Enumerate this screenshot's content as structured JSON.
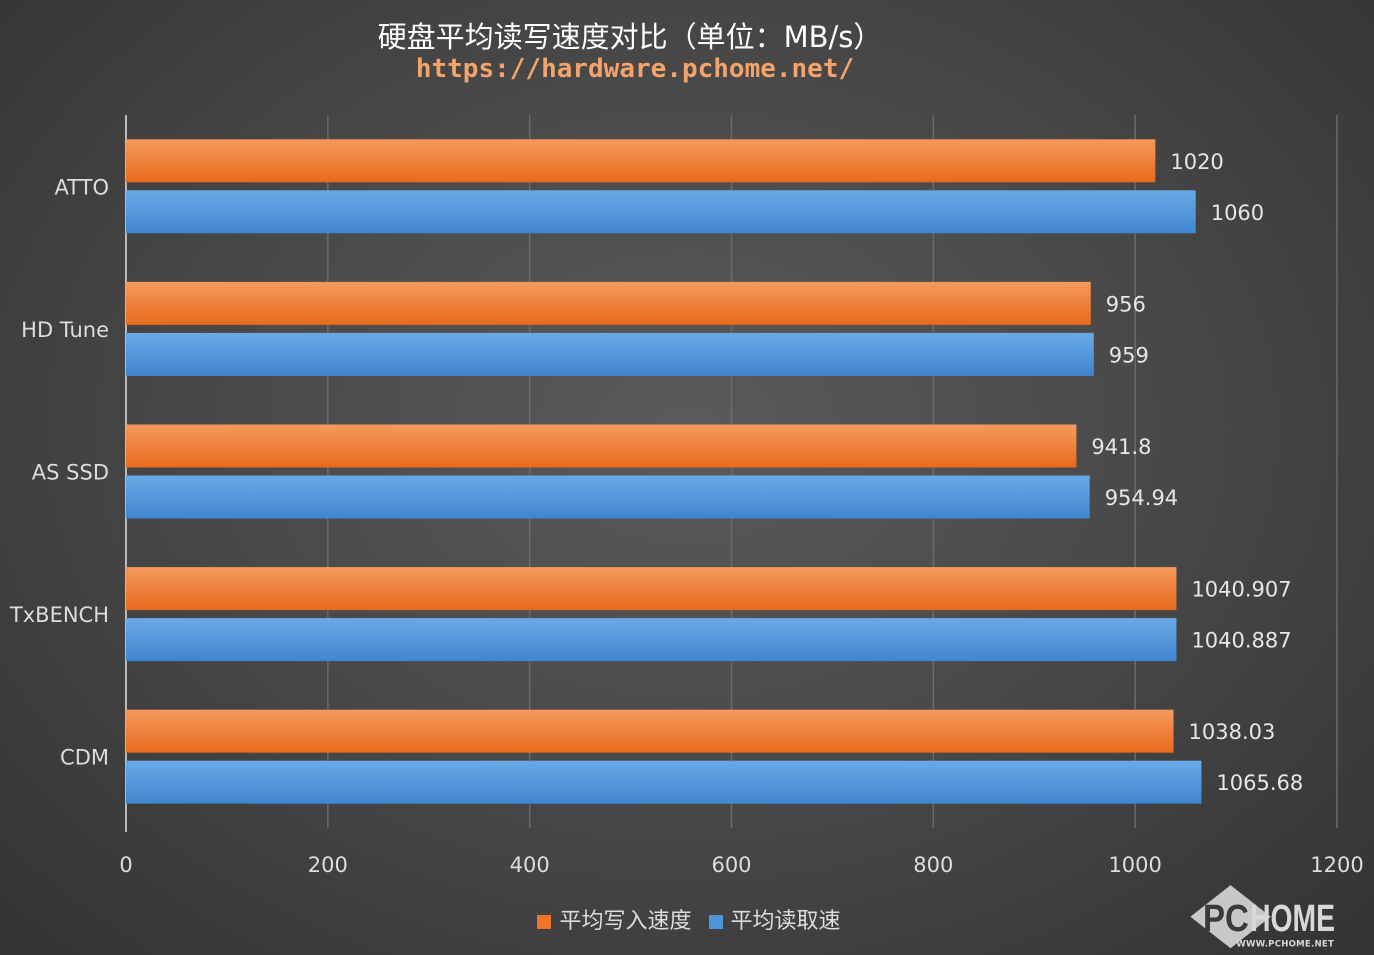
{
  "chart_data": {
    "type": "bar",
    "orientation": "horizontal",
    "title": "硬盘平均读写速度对比（单位：MB/s）",
    "subtitle": "https://hardware.pchome.net/",
    "categories": [
      "ATTO",
      "HD Tune",
      "AS SSD",
      "TxBENCH",
      "CDM"
    ],
    "series": [
      {
        "name": "平均写入速度",
        "color": "#ee7427",
        "values": [
          1020,
          956,
          941.8,
          1040.907,
          1038.03
        ],
        "labels": [
          "1020",
          "956",
          "941.8",
          "1040.907",
          "1038.03"
        ]
      },
      {
        "name": "平均读取速",
        "color": "#4f93d8",
        "values": [
          1060,
          959,
          954.94,
          1040.887,
          1065.68
        ],
        "labels": [
          "1060",
          "959",
          "954.94",
          "1040.887",
          "1065.68"
        ]
      }
    ],
    "xlim": [
      0,
      1200
    ],
    "xticks": [
      "0",
      "200",
      "400",
      "600",
      "800",
      "1000",
      "1200"
    ],
    "grid": true,
    "legend": "bottom"
  },
  "watermark": {
    "logo": "PCHOME",
    "url": "WWW.PCHOME.NET"
  }
}
